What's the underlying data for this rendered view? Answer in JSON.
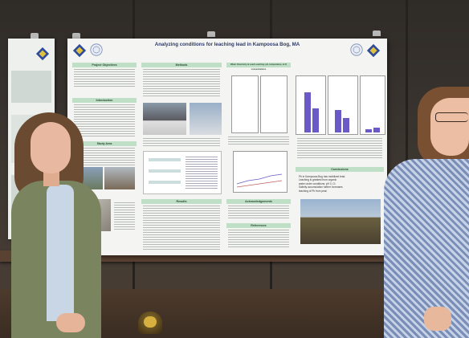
{
  "poster": {
    "title": "Analyzing conditions for leaching lead in Kampoosa Bog, MA",
    "authors": "",
    "sections": {
      "objectives": "Project Objectives",
      "introduction": "Introduction",
      "methods": "Methods",
      "study_area": "Study Area",
      "results": "Results",
      "acknowledgements": "Acknowledgements",
      "references": "References",
      "water_chem": "Water Chemistry & Lead Leaching: pH, temperature, & Cl concentrations",
      "conclusions": "Conclusions"
    },
    "conclusions": [
      "Pb in Kampoosa Bog has mobilized lead.",
      "Leaching is greatest from organic",
      "water under conditions: pH 3, Cl.",
      "Salinity accumulation further increases",
      "leaching of Pb from peat."
    ]
  },
  "colors": {
    "title": "#2d3a6e",
    "section_header": "#bfe0c6",
    "bars": "#6a5ac8"
  }
}
